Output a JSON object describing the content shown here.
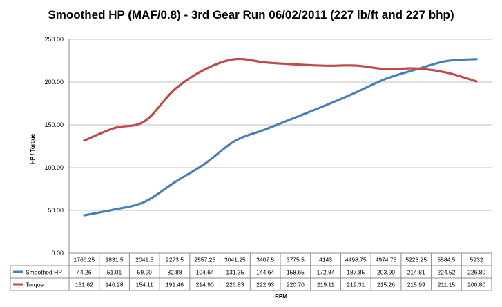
{
  "chart_data": {
    "type": "line",
    "title": "Smoothed HP (MAF/0.8) - 3rd Gear Run 06/02/2011 (227 lb/ft and 227 bhp)",
    "xlabel": "RPM",
    "ylabel": "HP / Torque",
    "ylim": [
      0,
      250
    ],
    "yticks": [
      "0.00",
      "50.00",
      "100.00",
      "150.00",
      "200.00",
      "250.00"
    ],
    "categories": [
      "1766.25",
      "1831.5",
      "2041.5",
      "2273.5",
      "2557.25",
      "3041.25",
      "3407.5",
      "3775.5",
      "4143",
      "4498.75",
      "4974.75",
      "5223.25",
      "5584.5",
      "5932"
    ],
    "grid": true,
    "legend": "data-table",
    "series": [
      {
        "name": "Smoothed HP",
        "color": "#4a7ebb",
        "values": [
          44.26,
          51.01,
          59.9,
          82.88,
          104.64,
          131.35,
          144.64,
          158.65,
          172.84,
          187.85,
          203.9,
          214.81,
          224.52,
          226.8
        ],
        "labels": [
          "44.26",
          "51.01",
          "59.90",
          "82.88",
          "104.64",
          "131.35",
          "144.64",
          "158.65",
          "172.84",
          "187.85",
          "203.90",
          "214.81",
          "224.52",
          "226.80"
        ]
      },
      {
        "name": "Torque",
        "color": "#be4b48",
        "values": [
          131.62,
          146.28,
          154.11,
          191.46,
          214.9,
          226.83,
          222.93,
          220.7,
          219.11,
          219.31,
          215.26,
          215.99,
          211.15,
          200.8
        ],
        "labels": [
          "131.62",
          "146.28",
          "154.11",
          "191.46",
          "214.90",
          "226.83",
          "222.93",
          "220.70",
          "219.11",
          "219.31",
          "215.26",
          "215.99",
          "211.15",
          "200.80"
        ]
      }
    ]
  }
}
